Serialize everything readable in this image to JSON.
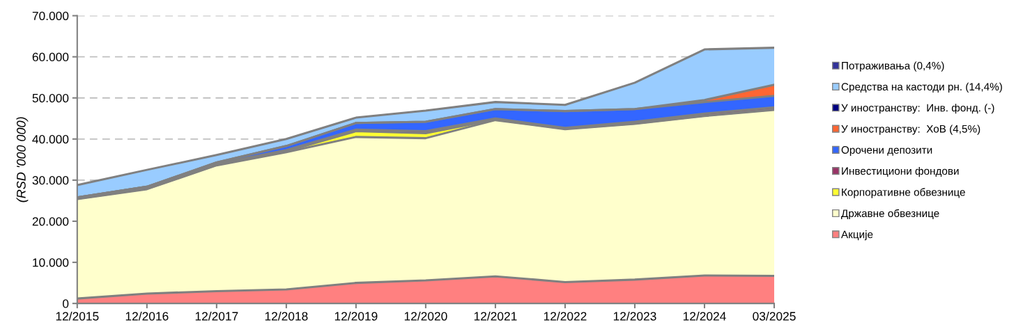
{
  "chart_data": {
    "type": "area",
    "stacked": true,
    "ylabel": "(RSD '000 000)",
    "categories": [
      "12/2015",
      "12/2016",
      "12/2017",
      "12/2018",
      "12/2019",
      "12/2020",
      "12/2021",
      "12/2022",
      "12/2023",
      "12/2024",
      "03/2025"
    ],
    "ylim": [
      0,
      70000
    ],
    "yticks": [
      {
        "value": 0,
        "label": "0"
      },
      {
        "value": 10000,
        "label": "10.000"
      },
      {
        "value": 20000,
        "label": "20.000"
      },
      {
        "value": 30000,
        "label": "30.000"
      },
      {
        "value": 40000,
        "label": "40.000"
      },
      {
        "value": 50000,
        "label": "50.000"
      },
      {
        "value": 60000,
        "label": "60.000"
      },
      {
        "value": 70000,
        "label": "70.000"
      }
    ],
    "grid": "y",
    "line_style": "dashed",
    "legend": "right",
    "series": [
      {
        "name": "Акције",
        "color": "#ff8080",
        "values": [
          1200,
          2400,
          3000,
          3400,
          5000,
          5600,
          6600,
          5200,
          5800,
          6800,
          6700
        ]
      },
      {
        "name": "Државне обвезнице",
        "color": "#ffffcc",
        "values": [
          24200,
          25400,
          30600,
          33400,
          35500,
          34600,
          38000,
          37200,
          37900,
          38800,
          40400
        ]
      },
      {
        "name": "Корпоративне обвезнице",
        "color": "#ffff33",
        "values": [
          100,
          100,
          100,
          200,
          1400,
          1200,
          100,
          100,
          100,
          100,
          100
        ]
      },
      {
        "name": "Инвестициони фондови",
        "color": "#993366",
        "values": [
          300,
          500,
          300,
          300,
          400,
          500,
          300,
          200,
          400,
          500,
          500
        ]
      },
      {
        "name": "Орочени депозити",
        "color": "#3366ff",
        "values": [
          0,
          0,
          300,
          1000,
          1600,
          2300,
          2300,
          4100,
          3100,
          2800,
          2800
        ]
      },
      {
        "name": "У иностранству:  ХоВ (4,5%)",
        "color": "#ff6633",
        "values": [
          0,
          0,
          0,
          0,
          0,
          0,
          0,
          0,
          0,
          500,
          2700
        ]
      },
      {
        "name": "У иностранству:  Инв. фонд. (-)",
        "color": "#000080",
        "values": [
          null,
          null,
          null,
          null,
          null,
          null,
          null,
          null,
          null,
          null,
          null
        ]
      },
      {
        "name": "Средства на кастоди рн. (14,4%)",
        "color": "#99ccff",
        "values": [
          3000,
          4100,
          1800,
          1700,
          1300,
          2700,
          1700,
          1500,
          6400,
          12300,
          9000
        ]
      },
      {
        "name": "Потраживања (0,4%)",
        "color": "#333399",
        "values": [
          null,
          null,
          null,
          null,
          null,
          null,
          null,
          null,
          null,
          null,
          null
        ]
      }
    ]
  }
}
